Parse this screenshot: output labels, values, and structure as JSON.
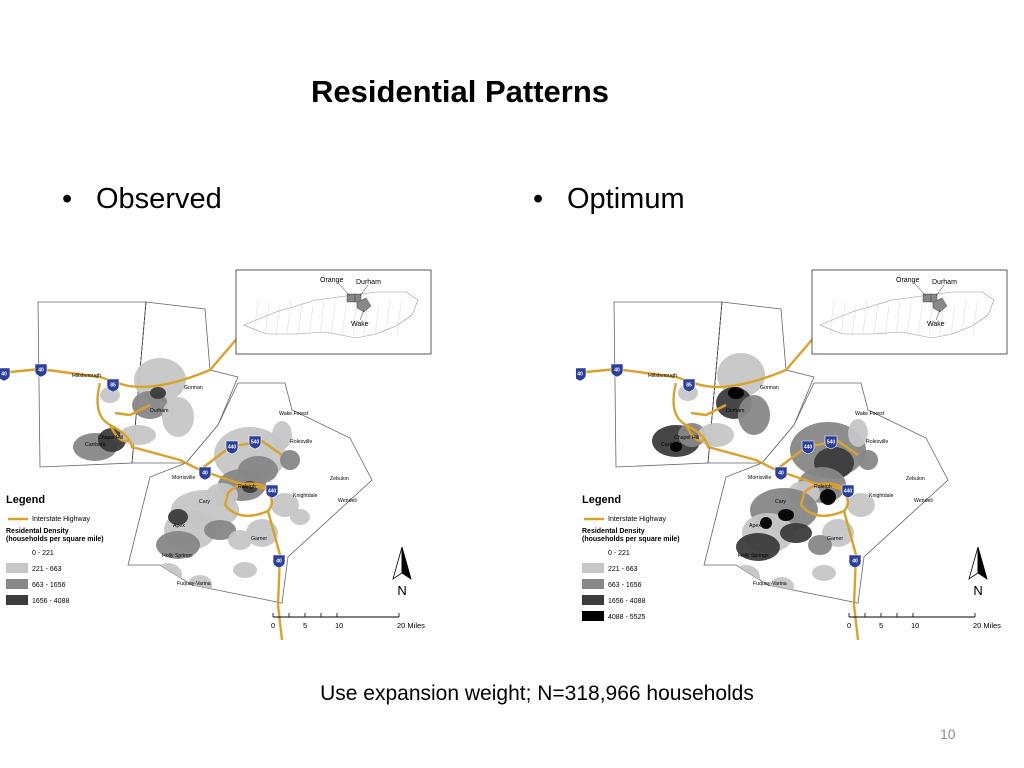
{
  "slide": {
    "title": "Residential Patterns",
    "bullets": [
      "Observed",
      "Optimum"
    ],
    "bullet_glyph": "•",
    "caption": "Use expansion weight; N=318,966 households",
    "page_number": "10"
  },
  "maps": [
    {
      "id": "observed",
      "inset": {
        "counties": [
          "Orange",
          "Durham",
          "Wake"
        ]
      },
      "places": [
        "Hillsborough",
        "Durham",
        "Gorman",
        "Carrboro",
        "Chapel Hill",
        "Wake Forest",
        "Rolesville",
        "Morrisville",
        "Raleigh",
        "Knightdale",
        "Zebulon",
        "Wendell",
        "Cary",
        "Apex",
        "Garner",
        "Holly Springs",
        "Fuquay-Varina"
      ],
      "highways": [
        "40",
        "40",
        "85",
        "440",
        "540",
        "40",
        "440",
        "40"
      ],
      "legend": {
        "title": "Legend",
        "highway_label": "Interstate Highway",
        "density_title": "Residental Density",
        "density_subtitle": "(households per square mile)",
        "classes": [
          "0 - 221",
          "221 - 663",
          "663 - 1656",
          "1656 - 4088"
        ]
      },
      "classes_colors": [
        "#ffffff",
        "#c6c6c6",
        "#878787",
        "#3c3c3c"
      ],
      "north": "N",
      "scale": {
        "ticks": [
          "0",
          "5",
          "10",
          "20 Miles"
        ]
      }
    },
    {
      "id": "optimum",
      "inset": {
        "counties": [
          "Orange",
          "Durham",
          "Wake"
        ]
      },
      "places": [
        "Hillsborough",
        "Durham",
        "Gorman",
        "Carrboro",
        "Chapel Hill",
        "Wake Forest",
        "Rolesville",
        "Morrisville",
        "Raleigh",
        "Knightdale",
        "Zebulon",
        "Wendell",
        "Cary",
        "Apex",
        "Garner",
        "Holly Springs",
        "Fuquay-Varina"
      ],
      "highways": [
        "40",
        "40",
        "85",
        "440",
        "540",
        "40",
        "440",
        "40"
      ],
      "legend": {
        "title": "Legend",
        "highway_label": "Interstate Highway",
        "density_title": "Residental Density",
        "density_subtitle": "(households per square mile)",
        "classes": [
          "0 - 221",
          "221 - 663",
          "663 - 1656",
          "1656 - 4088",
          "4088 - 5525"
        ]
      },
      "classes_colors": [
        "#ffffff",
        "#c6c6c6",
        "#878787",
        "#3c3c3c",
        "#000000"
      ],
      "north": "N",
      "scale": {
        "ticks": [
          "0",
          "5",
          "10",
          "20 Miles"
        ]
      }
    }
  ],
  "colors": {
    "highway": "#d9a22b",
    "shield": "#2a3f9e",
    "boundary": "#666666"
  }
}
